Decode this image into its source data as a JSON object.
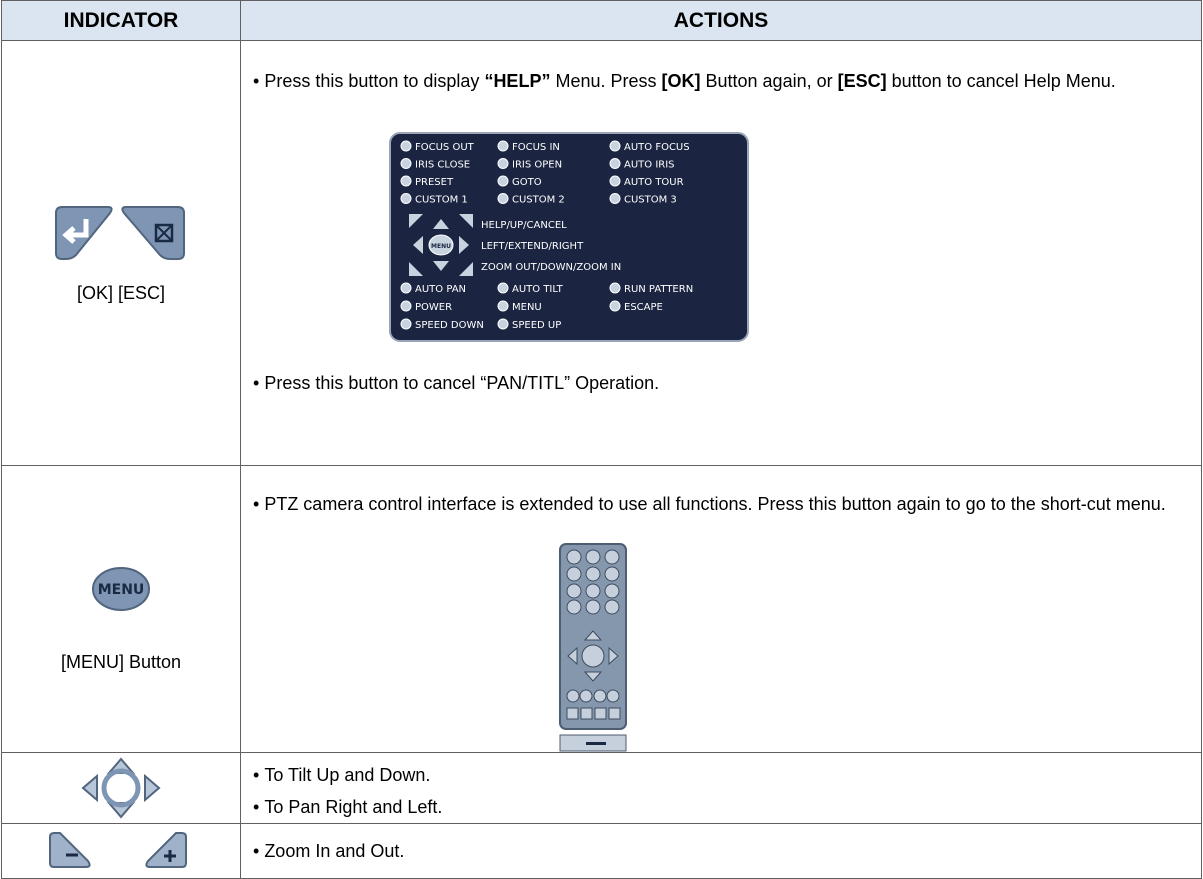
{
  "table": {
    "header": [
      "INDICATOR",
      "ACTIONS"
    ],
    "rows": [
      {
        "indicator": "[OK] [ESC]",
        "actions": [
          [
            {
              "text": "Press this button to display "
            },
            {
              "text": "“HELP”",
              "bold": true
            },
            {
              "text": " Menu. Press "
            },
            {
              "text": "[OK]",
              "bold": true
            },
            {
              "text": " Button again, or "
            },
            {
              "text": "[ESC]",
              "bold": true
            },
            {
              "text": " button to cancel Help Menu."
            }
          ],
          [
            {
              "text": "Press this button to cancel “PAN/TITL” Operation."
            }
          ]
        ]
      },
      {
        "indicator": "[MENU] Button",
        "actions": [
          [
            {
              "text": "PTZ camera control interface is extended to use all functions. Press this button again to go to the short-cut menu."
            }
          ]
        ]
      },
      {
        "indicator": null,
        "actions": [
          [
            {
              "text": "To Tilt Up and Down."
            }
          ],
          [
            {
              "text": "To Pan Right and Left."
            }
          ]
        ]
      },
      {
        "indicator": null,
        "actions": [
          [
            {
              "text": "Zoom In and Out."
            }
          ]
        ]
      }
    ]
  },
  "help_menu": {
    "top_items": [
      [
        "FOCUS OUT",
        "FOCUS IN",
        "AUTO FOCUS"
      ],
      [
        "IRIS CLOSE",
        "IRIS OPEN",
        "AUTO IRIS"
      ],
      [
        "PRESET",
        "GOTO",
        "AUTO TOUR"
      ],
      [
        "CUSTOM 1",
        "CUSTOM 2",
        "CUSTOM 3"
      ]
    ],
    "dpad_labels": [
      "HELP/UP/CANCEL",
      "LEFT/EXTEND/RIGHT",
      "ZOOM OUT/DOWN/ZOOM IN"
    ],
    "bottom_items": [
      [
        "AUTO PAN",
        "AUTO TILT",
        "RUN PATTERN"
      ],
      [
        "POWER",
        "MENU",
        "ESCAPE"
      ],
      [
        "SPEED DOWN",
        "SPEED UP"
      ]
    ],
    "menu_button": "MENU"
  }
}
